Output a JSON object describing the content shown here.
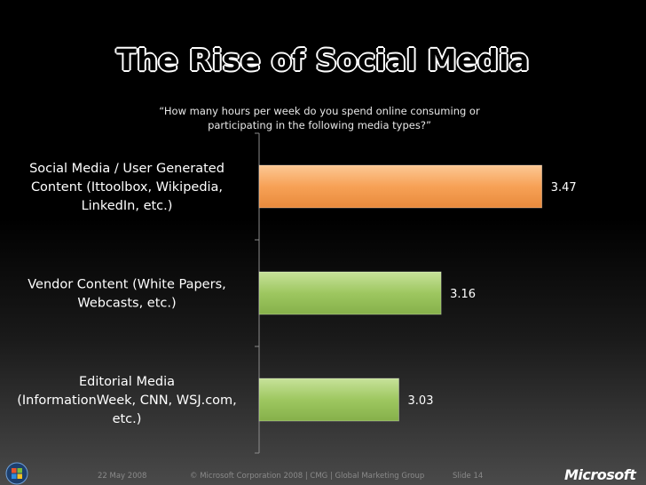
{
  "slide": {
    "title": "The Rise of Social Media",
    "subtitle": "“How many hours per week do you spend online consuming or participating in the following media types?”"
  },
  "chart_data": {
    "type": "bar",
    "orientation": "horizontal",
    "categories": [
      "Social Media / User Generated Content (Ittoolbox, Wikipedia, LinkedIn, etc.)",
      "Vendor Content (White Papers, Webcasts, etc.)",
      "Editorial Media (InformationWeek, CNN, WSJ.com, etc.)"
    ],
    "category_lines": [
      [
        "Social Media / User Generated",
        "Content (Ittoolbox, Wikipedia,",
        "LinkedIn, etc.)"
      ],
      [
        "Vendor Content (White Papers,",
        "Webcasts, etc.)"
      ],
      [
        "Editorial Media",
        "(InformationWeek, CNN, WSJ.com,",
        "etc.)"
      ]
    ],
    "values": [
      3.47,
      3.16,
      3.03
    ],
    "value_labels": [
      "3.47",
      "3.16",
      "3.03"
    ],
    "colors": [
      "#f5a45c",
      "#9bc55e",
      "#9bc55e"
    ],
    "xlim": [
      2.6,
      3.55
    ],
    "grid": false,
    "legend": "none"
  },
  "footer": {
    "date": "22 May 2008",
    "copyright": "© Microsoft Corporation 2008 | CMG | Global Marketing Group",
    "slide_number": "Slide 14",
    "logo": "Microsoft"
  },
  "icons": {
    "start_button": "windows-logo-icon"
  }
}
